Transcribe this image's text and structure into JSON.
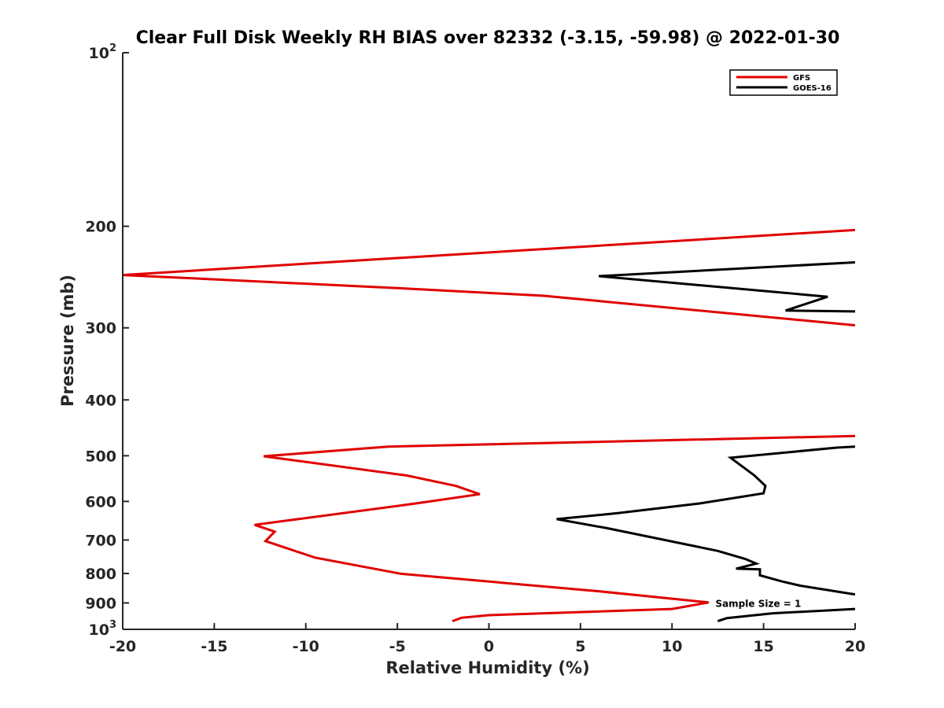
{
  "chart_data": {
    "type": "line",
    "title": "Clear Full Disk Weekly RH BIAS over 82332 (-3.15, -59.98) @ 2022-01-30",
    "xlabel": "Relative Humidity (%)",
    "ylabel": "Pressure (mb)",
    "xlim": [
      -20,
      20
    ],
    "ylim": [
      100,
      1000
    ],
    "yscale": "log",
    "yreversed": true,
    "xticks": [
      -20,
      -15,
      -10,
      -5,
      0,
      5,
      10,
      15,
      20
    ],
    "xtick_labels": [
      "-20",
      "-15",
      "-10",
      "-5",
      "0",
      "5",
      "10",
      "15",
      "20"
    ],
    "yticks": [
      100,
      200,
      300,
      400,
      500,
      600,
      700,
      800,
      900,
      1000
    ],
    "ytick_labels": [
      {
        "base": "10",
        "exp": "2"
      },
      {
        "base": "200",
        "exp": ""
      },
      {
        "base": "300",
        "exp": ""
      },
      {
        "base": "400",
        "exp": ""
      },
      {
        "base": "500",
        "exp": ""
      },
      {
        "base": "600",
        "exp": ""
      },
      {
        "base": "700",
        "exp": ""
      },
      {
        "base": "800",
        "exp": ""
      },
      {
        "base": "900",
        "exp": ""
      },
      {
        "base": "10",
        "exp": "3"
      }
    ],
    "grid": false,
    "legend_position": "top-right",
    "annotation": {
      "text": "Sample Size = 1",
      "x": 12.5,
      "y": 900
    },
    "series": [
      {
        "name": "GFS",
        "color": "#e00000",
        "segments": [
          [
            {
              "x": 20,
              "y": 203
            },
            {
              "x": -5,
              "y": 227
            },
            {
              "x": -20,
              "y": 243
            },
            {
              "x": -5,
              "y": 256
            },
            {
              "x": 3,
              "y": 264
            },
            {
              "x": 20,
              "y": 297
            }
          ],
          [
            {
              "x": 20,
              "y": 462
            },
            {
              "x": -5.5,
              "y": 482
            },
            {
              "x": -12.3,
              "y": 501
            },
            {
              "x": -4.5,
              "y": 541
            },
            {
              "x": -1.8,
              "y": 564
            },
            {
              "x": -0.5,
              "y": 583
            },
            {
              "x": -4,
              "y": 605
            },
            {
              "x": -12.8,
              "y": 659
            },
            {
              "x": -11.7,
              "y": 677
            },
            {
              "x": -12.2,
              "y": 703
            },
            {
              "x": -11,
              "y": 724
            },
            {
              "x": -9.5,
              "y": 751
            },
            {
              "x": -4.8,
              "y": 801
            },
            {
              "x": 6,
              "y": 859
            },
            {
              "x": 12,
              "y": 898
            },
            {
              "x": 10,
              "y": 922
            },
            {
              "x": 0,
              "y": 945
            },
            {
              "x": -1.5,
              "y": 955
            },
            {
              "x": -2,
              "y": 968
            }
          ]
        ]
      },
      {
        "name": "GOES-16",
        "color": "#000000",
        "segments": [
          [
            {
              "x": 20,
              "y": 231
            },
            {
              "x": 6,
              "y": 244
            },
            {
              "x": 18.5,
              "y": 265
            },
            {
              "x": 16.2,
              "y": 280
            },
            {
              "x": 20,
              "y": 281
            }
          ],
          [
            {
              "x": 20,
              "y": 482
            },
            {
              "x": 19,
              "y": 484
            },
            {
              "x": 13.2,
              "y": 504
            },
            {
              "x": 14.5,
              "y": 541
            },
            {
              "x": 15.1,
              "y": 564
            },
            {
              "x": 15,
              "y": 581
            },
            {
              "x": 11.5,
              "y": 605
            },
            {
              "x": 7,
              "y": 629
            },
            {
              "x": 3.7,
              "y": 644
            },
            {
              "x": 6.5,
              "y": 668
            },
            {
              "x": 9.8,
              "y": 702
            },
            {
              "x": 12.5,
              "y": 731
            },
            {
              "x": 14,
              "y": 755
            },
            {
              "x": 14.6,
              "y": 769
            },
            {
              "x": 13.5,
              "y": 785
            },
            {
              "x": 14.8,
              "y": 787
            },
            {
              "x": 14.8,
              "y": 806
            },
            {
              "x": 16,
              "y": 826
            },
            {
              "x": 17,
              "y": 840
            },
            {
              "x": 20,
              "y": 870
            }
          ],
          [
            {
              "x": 20,
              "y": 922
            },
            {
              "x": 15.5,
              "y": 938
            },
            {
              "x": 13,
              "y": 956
            },
            {
              "x": 12.5,
              "y": 968
            }
          ]
        ]
      }
    ]
  }
}
